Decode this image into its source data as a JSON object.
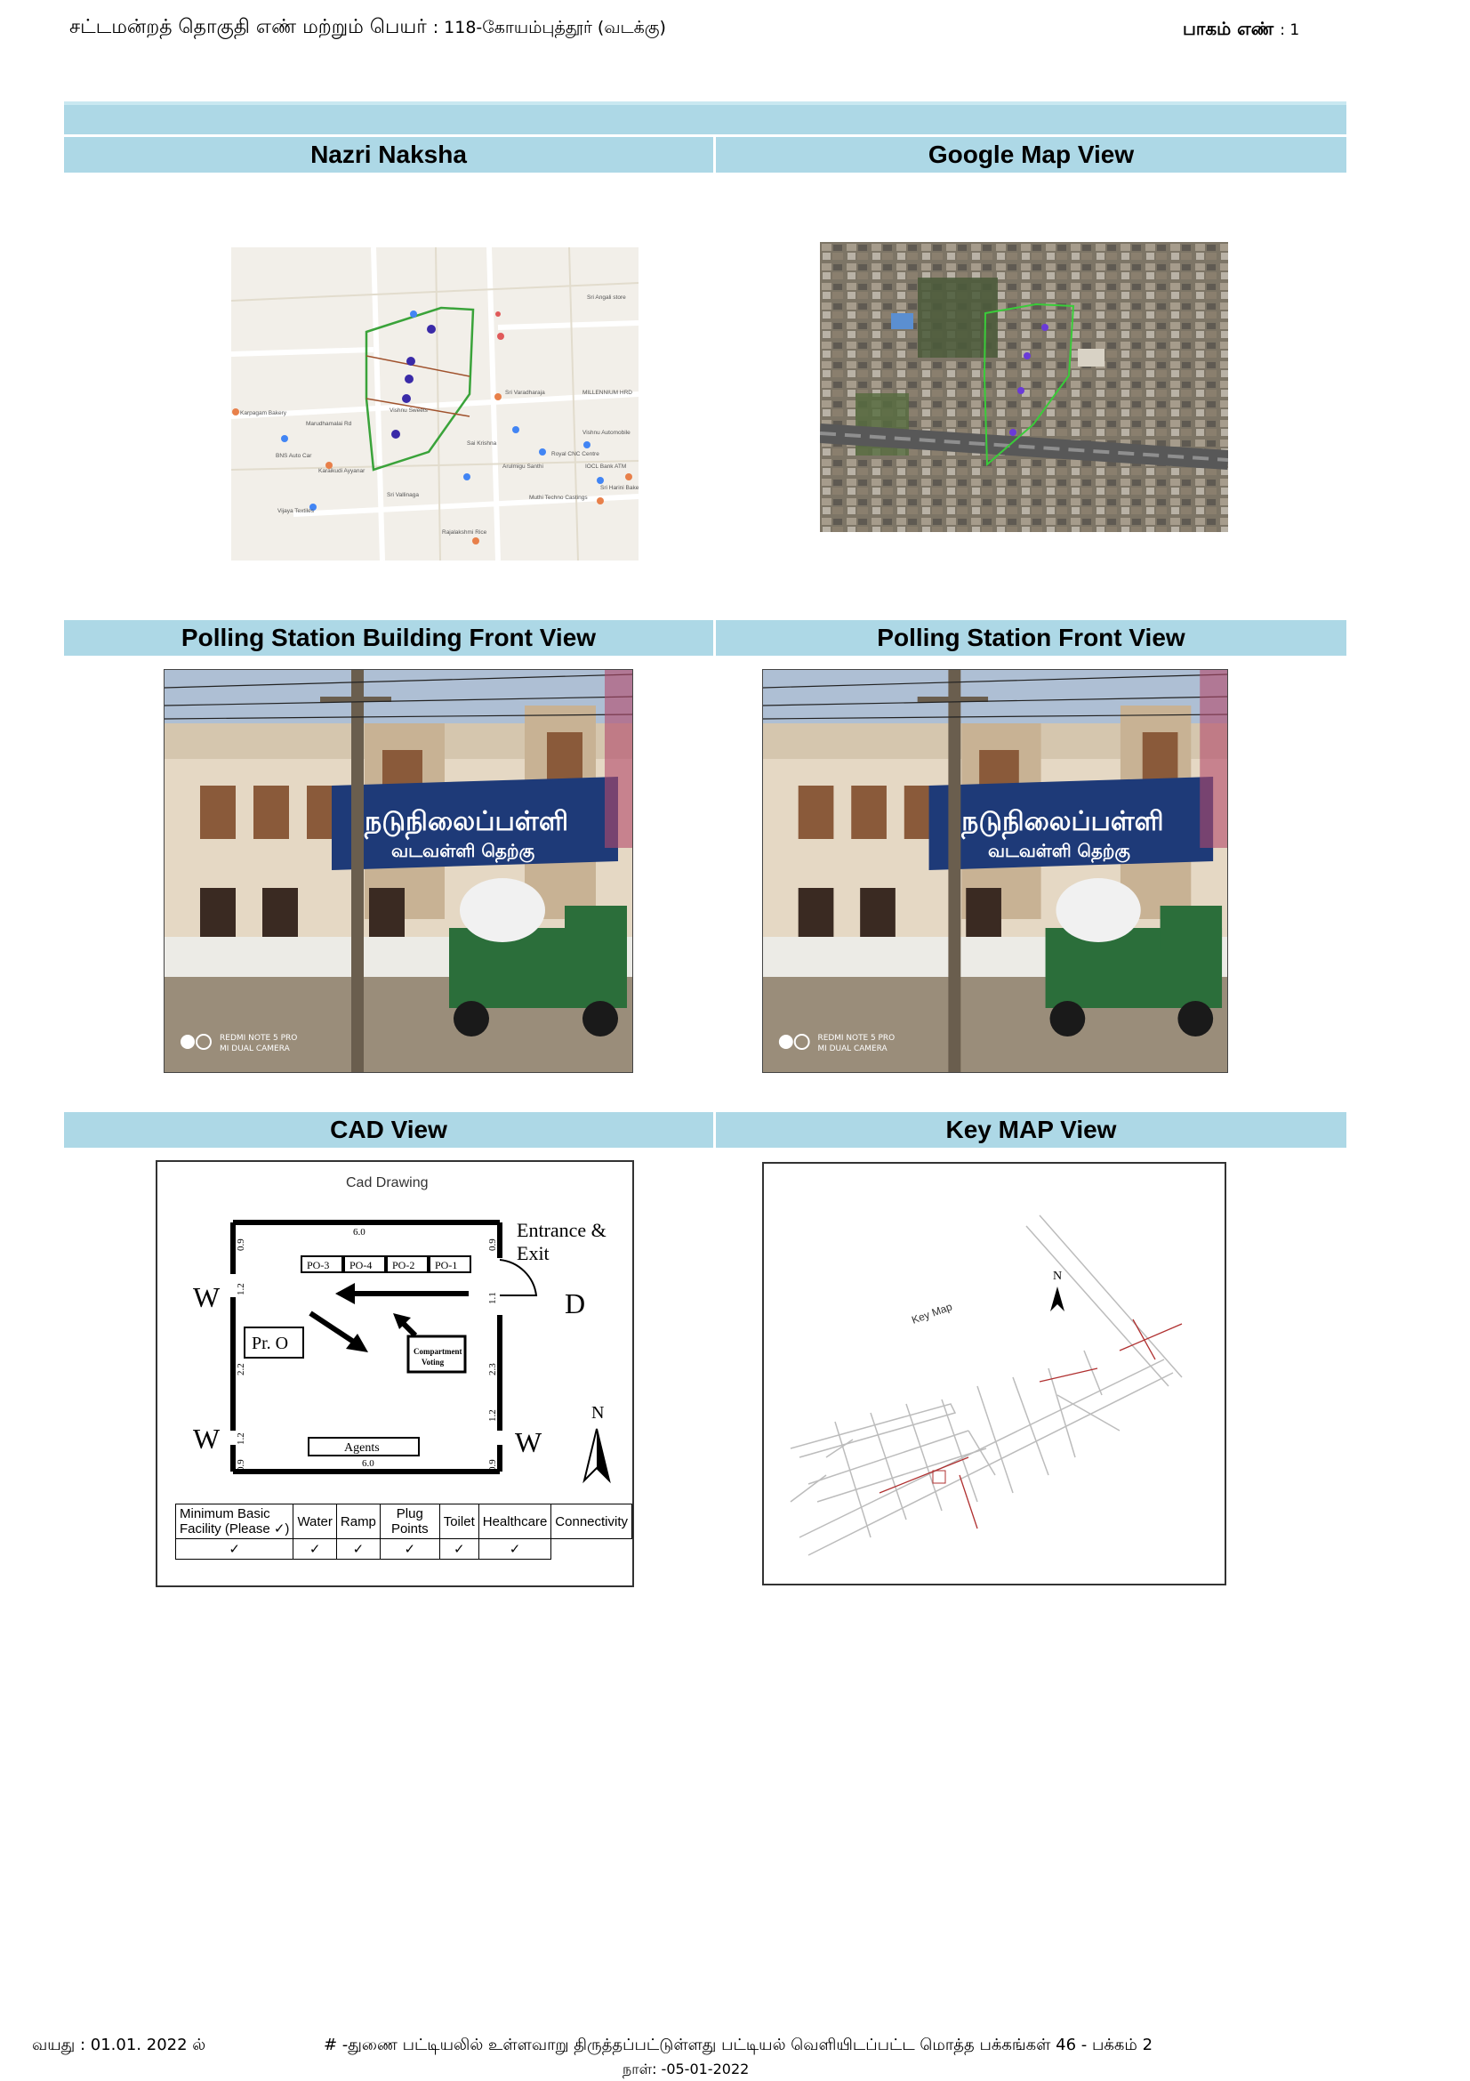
{
  "header": {
    "constituency_label": "சட்டமன்றத் தொகுதி எண் மற்றும் பெயர்",
    "constituency_value": ": 118-கோயம்புத்தூர் (வடக்கு)",
    "part_label": "பாகம் எண்",
    "part_value": ": 1"
  },
  "sections": {
    "nazri_naksha": "Nazri Naksha",
    "google_map": "Google Map View",
    "building_front": "Polling Station Building Front View",
    "station_front": "Polling Station Front View",
    "cad_view": "CAD View",
    "key_map": "Key MAP View"
  },
  "map": {
    "labels": [
      "Marudhamalai Rd",
      "Sri Varadharaja Perumal Temple",
      "MILLENNIUM HRD CONSULTANTS",
      "Vishnu Automobiles",
      "IOCL Bank ATM",
      "Royal CNC Centre",
      "Karpagam Bakery",
      "Arulmigu Santhi Murugan Temple",
      "Muthi Techno Castings",
      "Sri Harini Bakery",
      "Sri Angali store",
      "Amman Motors",
      "BNS Auto Car Water Wash",
      "Karaikudi Ayyanar Chettinad Mess",
      "Vishnu Sweets",
      "Sri Vallinaga Kambarasu",
      "Vijaya Textiles",
      "Sai Krishna",
      "Rajalakshmi Rice Bhavan"
    ]
  },
  "photo": {
    "banner_line1": "நடுநிலைப்பள்ளி",
    "banner_line2": "வடவள்ளி தெற்கு",
    "watermark1": "REDMI NOTE 5 PRO",
    "watermark2": "MI DUAL CAMERA"
  },
  "cad": {
    "title": "Cad Drawing",
    "entrance": [
      "Entrance &",
      "Exit"
    ],
    "door": "D",
    "windows": [
      "W",
      "W",
      "W"
    ],
    "pro": "Pr. O",
    "compartment": [
      "Compartment",
      "Voting"
    ],
    "agents": "Agents",
    "po_boxes": [
      "PO-3",
      "PO-4",
      "PO-2",
      "PO-1"
    ],
    "dims": {
      "top": "6.0",
      "bottom": "6.0",
      "left_top": "0.9",
      "left_mid1": "1.2",
      "left_mid2": "2.2",
      "left_mid3": "1.2",
      "left_bot": "0.9",
      "right_top": "0.9",
      "right_mid1": "1.1",
      "right_mid2": "2.3",
      "right_mid3": "1.2",
      "right_bot": "0.9"
    },
    "north": "N",
    "facility_headers": [
      "Minimum Basic\nFacility (Please ✓)",
      "Water",
      "Ramp",
      "Plug Points",
      "Toilet",
      "Healthcare",
      "Connectivity"
    ],
    "facility_ticks": [
      "✓",
      "✓",
      "✓",
      "✓",
      "✓",
      "✓"
    ]
  },
  "keymap": {
    "title": "Key Map",
    "north": "N"
  },
  "footer": {
    "age_label": "வயது : 01.01. 2022  ல்",
    "note": "# -துணை பட்டியலில் உள்ளவாறு திருத்தப்பட்டுள்ளது  பட்டியல் வெளியிடப்பட்ட  மொத்த பக்கங்கள்  46  - பக்கம் 2",
    "date": "நாள்: -05-01-2022"
  },
  "colors": {
    "section_band": "#add8e6",
    "map_boundary": "#3aa33a",
    "map_pin": "#3a2aa8"
  }
}
